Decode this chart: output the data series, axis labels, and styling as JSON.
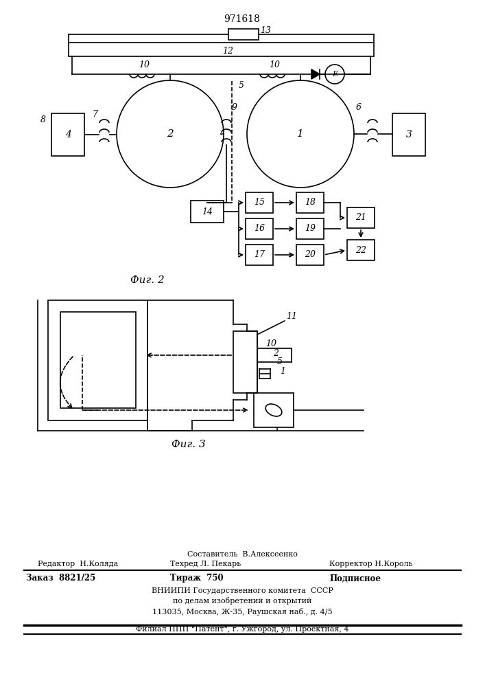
{
  "title": "971618",
  "fig2_label": "Фиг. 2",
  "fig3_label": "Фиг. 3",
  "bg_color": "#ffffff",
  "line_color": "#000000"
}
